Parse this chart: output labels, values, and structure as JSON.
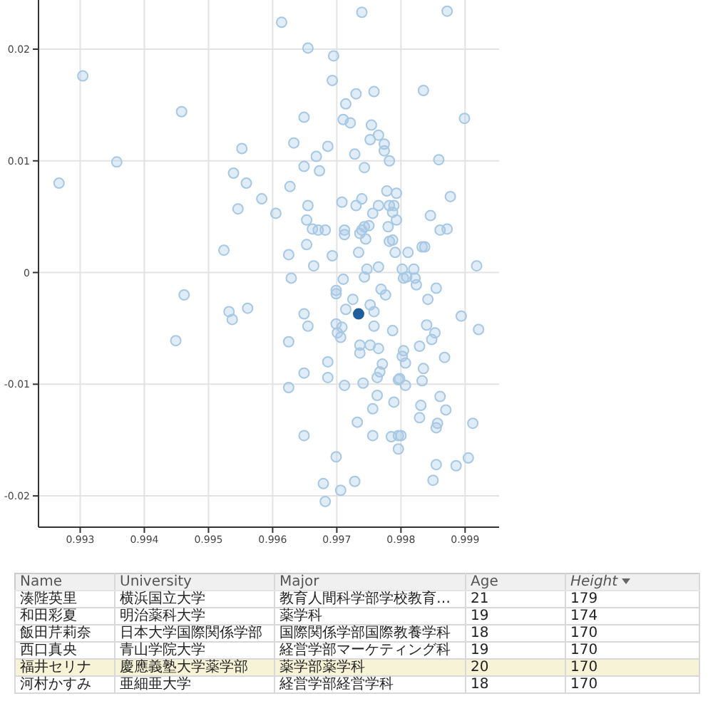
{
  "chart_data": {
    "type": "scatter",
    "xlim": [
      0.99235,
      0.99953
    ],
    "ylim": [
      -0.0228,
      0.0244
    ],
    "xticks": [
      0.993,
      0.994,
      0.995,
      0.996,
      0.997,
      0.998,
      0.999
    ],
    "yticks": [
      -0.02,
      -0.01,
      0,
      0.01,
      0.02
    ],
    "grid": true,
    "marker": "circle",
    "series": [
      {
        "color": "#a6c8e4",
        "x": [
          0.99267,
          0.99304,
          0.99357,
          0.99458,
          0.99552,
          0.99539,
          0.99559,
          0.99583,
          0.99546,
          0.99524,
          0.99614,
          0.99739,
          0.99872,
          0.99655,
          0.99695,
          0.99693,
          0.9973,
          0.99758,
          0.99835,
          0.99714,
          0.99649,
          0.9971,
          0.99721,
          0.99754,
          0.99899,
          0.99765,
          0.99752,
          0.99633,
          0.99774,
          0.99686,
          0.99774,
          0.99668,
          0.99728,
          0.99782,
          0.99859,
          0.99649,
          0.99673,
          0.99743,
          0.99627,
          0.99778,
          0.99793,
          0.99877,
          0.99708,
          0.99739,
          0.9973,
          0.99765,
          0.99782,
          0.99789,
          0.99605,
          0.99655,
          0.99756,
          0.99787,
          0.99846,
          0.99653,
          0.99793,
          0.99662,
          0.99671,
          0.99682,
          0.99712,
          0.99712,
          0.99743,
          0.9975,
          0.99739,
          0.99736,
          0.9978,
          0.99861,
          0.99872,
          0.99745,
          0.99782,
          0.99787,
          0.99653,
          0.99833,
          0.99837,
          0.99625,
          0.99693,
          0.99734,
          0.99791,
          0.99811,
          0.99664,
          0.99747,
          0.99765,
          0.99802,
          0.9982,
          0.99918,
          0.99629,
          0.9971,
          0.99804,
          0.99822,
          0.99809,
          0.99824,
          0.99855,
          0.99699,
          0.99699,
          0.99743,
          0.99769,
          0.99776,
          0.99842,
          0.99725,
          0.99752,
          0.99758,
          0.99714,
          0.99649,
          0.99655,
          0.99699,
          0.99708,
          0.99758,
          0.99787,
          0.9984,
          0.99853,
          0.99848,
          0.99894,
          0.99921,
          0.99625,
          0.99701,
          0.99706,
          0.99736,
          0.99752,
          0.99736,
          0.99765,
          0.99804,
          0.99802,
          0.99829,
          0.99868,
          0.99686,
          0.99771,
          0.99807,
          0.99835,
          0.99649,
          0.99686,
          0.99767,
          0.99763,
          0.99741,
          0.99796,
          0.99798,
          0.99833,
          0.99625,
          0.99712,
          0.99807,
          0.99763,
          0.99861,
          0.99789,
          0.99831,
          0.9987,
          0.99756,
          0.99829,
          0.99732,
          0.99857,
          0.99855,
          0.99912,
          0.99649,
          0.99756,
          0.99785,
          0.99796,
          0.998,
          0.99796,
          0.99699,
          0.99905,
          0.99855,
          0.99886,
          0.99679,
          0.99728,
          0.99706,
          0.9985,
          0.99682,
          0.99462,
          0.99532,
          0.99537,
          0.99561,
          0.99449
        ],
        "values": [
          0.008,
          0.0176,
          0.0099,
          0.0144,
          0.0111,
          0.0089,
          0.008,
          0.0066,
          0.0057,
          0.002,
          0.0224,
          0.0233,
          0.0234,
          0.0201,
          0.0194,
          0.0172,
          0.016,
          0.0162,
          0.0163,
          0.0151,
          0.0139,
          0.0137,
          0.0134,
          0.0132,
          0.0138,
          0.0123,
          0.0119,
          0.0116,
          0.0115,
          0.0113,
          0.0109,
          0.0104,
          0.0106,
          0.01,
          0.0101,
          0.0095,
          0.0091,
          0.0094,
          0.0077,
          0.0073,
          0.0071,
          0.0068,
          0.0063,
          0.0066,
          0.006,
          0.006,
          0.006,
          0.006,
          0.0053,
          0.006,
          0.0053,
          0.0054,
          0.0051,
          0.0047,
          0.0047,
          0.0039,
          0.0038,
          0.0038,
          0.0038,
          0.0034,
          0.0041,
          0.0042,
          0.0038,
          0.0035,
          0.0041,
          0.0038,
          0.0039,
          0.003,
          0.0028,
          0.0029,
          0.0025,
          0.0023,
          0.0023,
          0.0016,
          0.0015,
          0.0018,
          0.0018,
          0.0018,
          0.0006,
          0.0003,
          0.0005,
          0.0003,
          0.0003,
          0.0006,
          -0.0005,
          -0.0006,
          -0.0005,
          -0.0005,
          -0.0004,
          -0.0011,
          -0.0014,
          -0.0016,
          -0.0019,
          -0.0004,
          -0.0015,
          -0.002,
          -0.0024,
          -0.0024,
          -0.0029,
          -0.0035,
          -0.0033,
          -0.0037,
          -0.0048,
          -0.0046,
          -0.0049,
          -0.0048,
          -0.0052,
          -0.0047,
          -0.0054,
          -0.006,
          -0.0039,
          -0.0051,
          -0.0062,
          -0.0054,
          -0.0058,
          -0.0065,
          -0.0065,
          -0.0072,
          -0.0068,
          -0.007,
          -0.0075,
          -0.0066,
          -0.0076,
          -0.008,
          -0.0082,
          -0.0081,
          -0.0086,
          -0.009,
          -0.0094,
          -0.0089,
          -0.0094,
          -0.0099,
          -0.0096,
          -0.0095,
          -0.0097,
          -0.0103,
          -0.0101,
          -0.0101,
          -0.011,
          -0.0111,
          -0.0116,
          -0.0119,
          -0.0123,
          -0.0122,
          -0.013,
          -0.0134,
          -0.0135,
          -0.0139,
          -0.0135,
          -0.0146,
          -0.0146,
          -0.0147,
          -0.0146,
          -0.0146,
          -0.0158,
          -0.0165,
          -0.0166,
          -0.0172,
          -0.0173,
          -0.0189,
          -0.0187,
          -0.0195,
          -0.0186,
          -0.0205,
          -0.002,
          -0.0035,
          -0.0042,
          -0.0032,
          -0.0061
        ]
      },
      {
        "color": "#1f5f9e",
        "x": [
          0.99734
        ],
        "values": [
          -0.0037
        ]
      }
    ],
    "annotations": [
      "Name",
      "University",
      "Major",
      "Age",
      "Height",
      "湊陛英里",
      "横浜国立大学",
      "教育人間科学部学校教育…",
      "21",
      "179",
      "和田彩夏",
      "明治薬科大学",
      "薬学科",
      "19",
      "174",
      "飯田芹莉奈",
      "日本大学国際関係学部",
      "国際関係学部国際教養学科",
      "18",
      "170",
      "西口真央",
      "青山学院大学",
      "経営学部マーケティング科",
      "19",
      "170",
      "福井セリナ",
      "慶應義塾大学薬学部",
      "薬学部薬学科",
      "20",
      "170",
      "河村かすみ",
      "亜細亜大学",
      "経営学部経営学科",
      "18",
      "170"
    ]
  }
}
